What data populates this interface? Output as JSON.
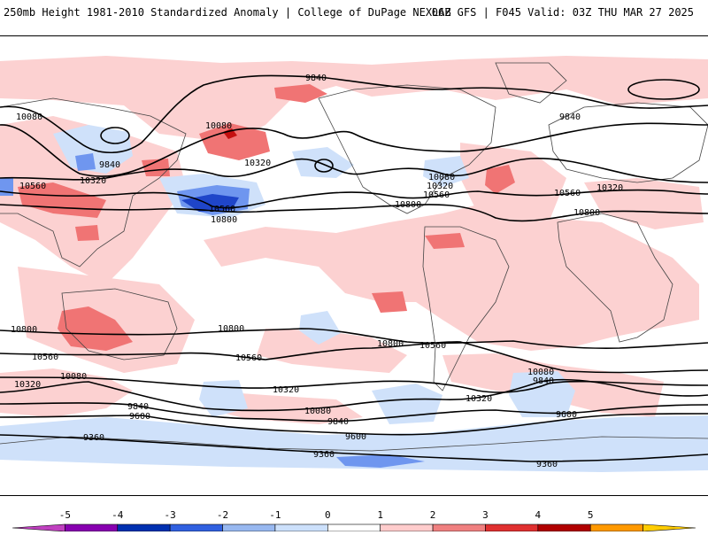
{
  "header": {
    "title": "250mb Height 1981-2010 Standardized Anomaly | College of DuPage NEXLAB",
    "run_info": "06Z GFS | F045 Valid: 03Z THU MAR 27 2025"
  },
  "contour_labels": [
    {
      "text": "9840"
    },
    {
      "text": "10080"
    },
    {
      "text": "9840"
    },
    {
      "text": "10320"
    },
    {
      "text": "10560"
    },
    {
      "text": "10080"
    },
    {
      "text": "10320"
    },
    {
      "text": "10560"
    },
    {
      "text": "10800"
    },
    {
      "text": "9840"
    },
    {
      "text": "10080"
    },
    {
      "text": "10320"
    },
    {
      "text": "10560"
    },
    {
      "text": "10800"
    },
    {
      "text": "10560"
    },
    {
      "text": "10320"
    },
    {
      "text": "10800"
    },
    {
      "text": "10800"
    },
    {
      "text": "10800"
    },
    {
      "text": "10560"
    },
    {
      "text": "10800"
    },
    {
      "text": "10560"
    },
    {
      "text": "10560"
    },
    {
      "text": "10320"
    },
    {
      "text": "10080"
    },
    {
      "text": "10320"
    },
    {
      "text": "10080"
    },
    {
      "text": "9840"
    },
    {
      "text": "9600"
    },
    {
      "text": "9840"
    },
    {
      "text": "9600"
    },
    {
      "text": "10080"
    },
    {
      "text": "9840"
    },
    {
      "text": "10320"
    },
    {
      "text": "9600"
    },
    {
      "text": "9360"
    },
    {
      "text": "9360"
    },
    {
      "text": "9360"
    }
  ],
  "colorbar": {
    "ticks": [
      "-5",
      "-4",
      "-3",
      "-2",
      "-1",
      "0",
      "1",
      "2",
      "3",
      "4",
      "5"
    ],
    "colors": [
      "#c040c0",
      "#8800b0",
      "#0030b0",
      "#3060e0",
      "#98b8f0",
      "#cce0fb",
      "#ffffff",
      "#ffcccc",
      "#f08080",
      "#e03030",
      "#b00000",
      "#ff9900",
      "#ffcc00"
    ]
  },
  "anomaly_colors": {
    "neg_light": "#cfe1fa",
    "neg_mid": "#6f96ef",
    "neg_strong": "#1f45c9",
    "pos_light": "#fcd1d1",
    "pos_mid": "#f07474",
    "pos_strong": "#c41010"
  }
}
